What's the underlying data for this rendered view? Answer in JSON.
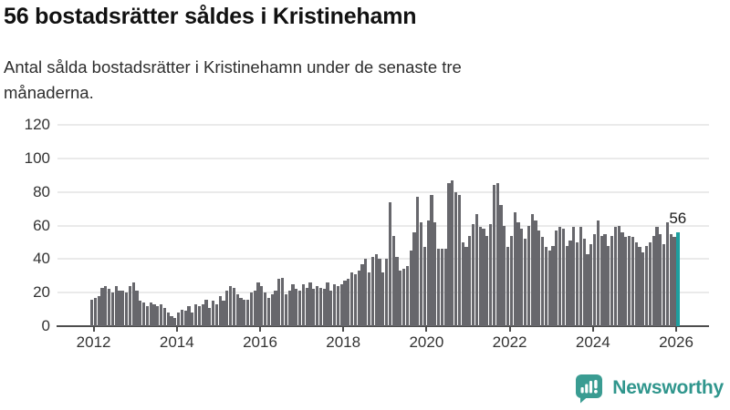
{
  "header": {
    "title": "56 bostadsrätter såldes i Kristinehamn",
    "subtitle_line1": "Antal sålda bostadsrätter i Kristinehamn under de senaste tre",
    "subtitle_line2": "månaderna."
  },
  "footer": {
    "brand": "Newsworthy",
    "logo_icon": "newsworthy-speech-bubble-chart-icon"
  },
  "colors": {
    "bar": "#67676c",
    "highlight_bar": "#1d9f9f",
    "gridline": "#eaeaea",
    "axis": "#4d4d4d",
    "tick_text": "#333333",
    "title_text": "#111111",
    "brand_teal": "#3a9c92"
  },
  "chart_data": {
    "type": "bar",
    "title": "56 bostadsrätter såldes i Kristinehamn",
    "subtitle": "Antal sålda bostadsrätter i Kristinehamn under de senaste tre månaderna.",
    "x_start": "2012-01",
    "x_frequency": "monthly",
    "xticks": [
      2012,
      2014,
      2016,
      2018,
      2020,
      2022,
      2024,
      2026
    ],
    "yticks": [
      0,
      20,
      40,
      60,
      80,
      100,
      120
    ],
    "ylim": [
      0,
      120
    ],
    "grid": "horizontal",
    "legend": "none",
    "highlight_last": true,
    "last_value_label": "56",
    "values": [
      16,
      17,
      18,
      23,
      24,
      22,
      20,
      24,
      21,
      21,
      20,
      24,
      26,
      21,
      15,
      14,
      12,
      14,
      13,
      12,
      13,
      11,
      8,
      6,
      5,
      8,
      10,
      9,
      12,
      8,
      13,
      12,
      13,
      16,
      11,
      15,
      13,
      18,
      15,
      21,
      24,
      23,
      19,
      17,
      16,
      16,
      20,
      21,
      26,
      24,
      20,
      17,
      19,
      21,
      28,
      29,
      19,
      21,
      25,
      22,
      21,
      25,
      23,
      26,
      22,
      24,
      23,
      22,
      26,
      21,
      25,
      24,
      25,
      27,
      28,
      32,
      31,
      33,
      37,
      40,
      32,
      41,
      43,
      40,
      32,
      40,
      74,
      54,
      41,
      33,
      34,
      36,
      45,
      56,
      77,
      62,
      47,
      63,
      78,
      62,
      46,
      46,
      46,
      85,
      87,
      80,
      78,
      50,
      47,
      54,
      61,
      67,
      59,
      58,
      54,
      61,
      84,
      85,
      72,
      60,
      47,
      54,
      68,
      62,
      58,
      52,
      60,
      67,
      63,
      57,
      53,
      47,
      45,
      48,
      57,
      59,
      58,
      48,
      51,
      59,
      50,
      59,
      52,
      43,
      49,
      55,
      63,
      54,
      55,
      48,
      54,
      59,
      60,
      56,
      53,
      54,
      53,
      50,
      47,
      44,
      48,
      50,
      54,
      59,
      55,
      49,
      62,
      55,
      53,
      56
    ]
  }
}
